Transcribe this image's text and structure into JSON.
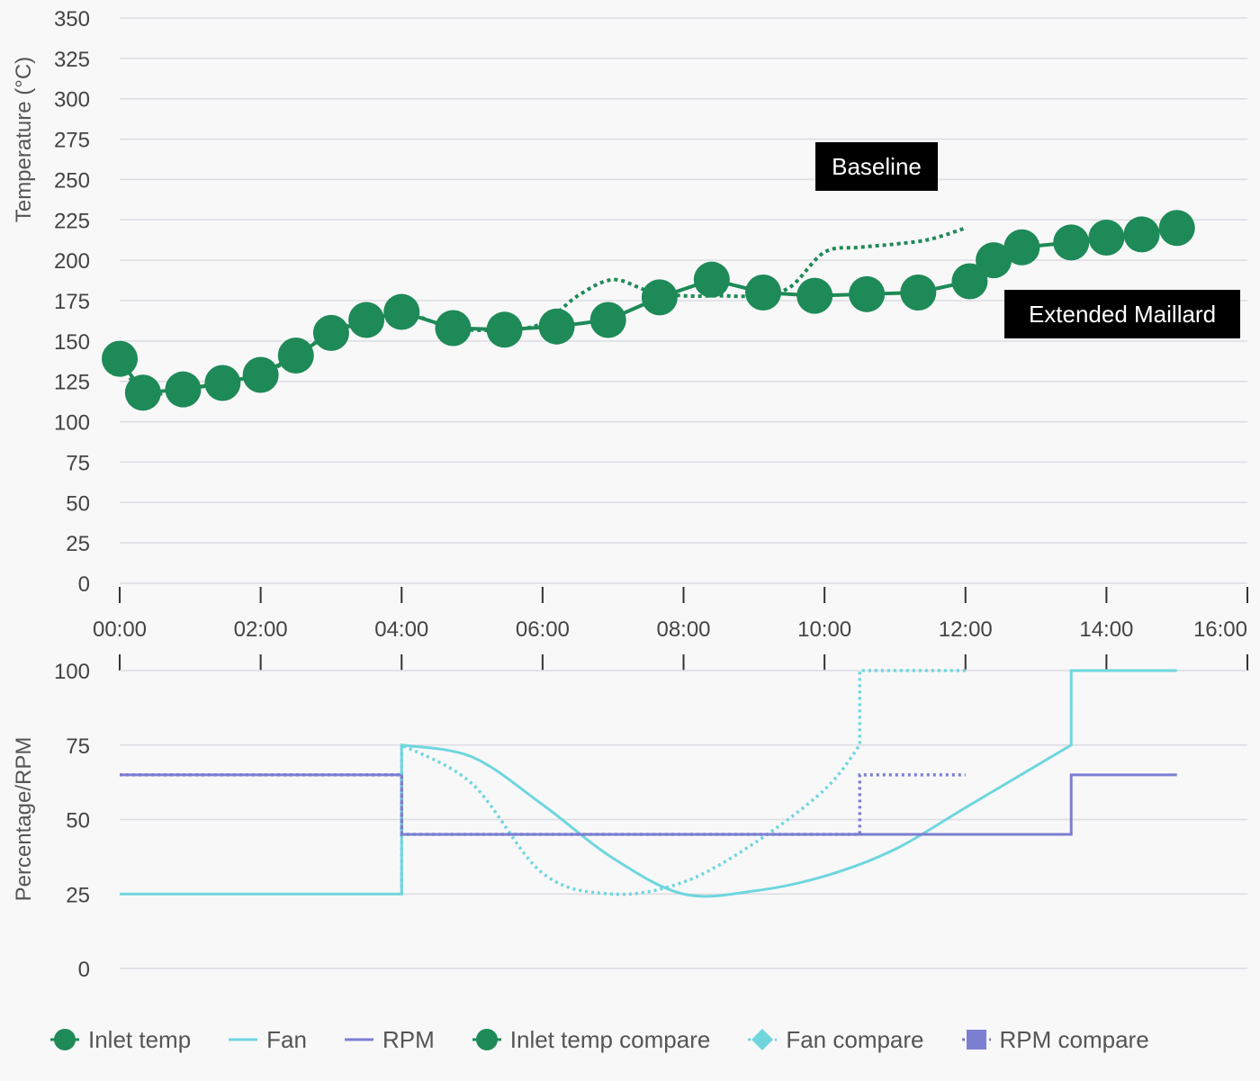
{
  "chart_data": [
    {
      "type": "line",
      "ylabel": "Temperature (°C)",
      "xlabel": "",
      "ylim": [
        0,
        350
      ],
      "yticks": [
        "0",
        "25",
        "50",
        "75",
        "100",
        "125",
        "150",
        "175",
        "200",
        "225",
        "250",
        "275",
        "300",
        "325",
        "350"
      ],
      "xticks": [
        "00:00",
        "02:00",
        "04:00",
        "06:00",
        "08:00",
        "10:00",
        "12:00",
        "14:00",
        "16:00"
      ],
      "xlim_minutes": [
        0,
        16
      ],
      "grid": true,
      "series": [
        {
          "name": "Inlet temp",
          "x": [
            0,
            0.33,
            0.9,
            1.46,
            2.0,
            2.5,
            3.0,
            3.5,
            4.0,
            4.73,
            5.46,
            6.2,
            6.93,
            7.66,
            8.4,
            9.13,
            9.86,
            10.6,
            11.33,
            12.06,
            12.4,
            12.8,
            13.5,
            14.0,
            14.5,
            15.0
          ],
          "values": [
            139,
            118,
            120,
            124,
            129,
            141,
            155,
            163,
            168,
            158,
            157,
            159,
            163,
            177,
            188,
            180,
            178,
            179,
            180,
            187,
            200,
            208,
            211,
            214,
            216,
            220
          ]
        },
        {
          "name": "Inlet temp compare",
          "x": [
            0,
            0.33,
            0.9,
            1.46,
            2.0,
            2.5,
            3.0,
            3.5,
            4.0,
            4.73,
            5.46,
            6.0,
            6.5,
            7.0,
            7.5,
            8.0,
            8.5,
            9.0,
            9.5,
            10.0,
            10.5,
            11.0,
            11.5,
            12.0
          ],
          "values": [
            139,
            118,
            120,
            124,
            129,
            141,
            155,
            163,
            168,
            158,
            157,
            161,
            178,
            188,
            181,
            178,
            178,
            178,
            183,
            205,
            208,
            210,
            213,
            220
          ]
        }
      ],
      "annotations": [
        "Baseline",
        "Extended Maillard"
      ]
    },
    {
      "type": "line",
      "ylabel": "Percentage/RPM",
      "ylim": [
        0,
        100
      ],
      "yticks": [
        "0",
        "25",
        "50",
        "75",
        "100"
      ],
      "grid": true,
      "series": [
        {
          "name": "Fan",
          "x": [
            0,
            4,
            4,
            5,
            6,
            7,
            8,
            9,
            10,
            11,
            12,
            13,
            13.5,
            13.5,
            15
          ],
          "values": [
            25,
            25,
            75,
            71,
            55,
            37,
            25,
            26,
            31,
            40,
            54,
            68,
            75,
            100,
            100
          ]
        },
        {
          "name": "RPM",
          "x": [
            0,
            4,
            4,
            13.5,
            13.5,
            15
          ],
          "values": [
            65,
            65,
            45,
            45,
            65,
            65
          ]
        },
        {
          "name": "Fan compare",
          "x": [
            4,
            4,
            5,
            6,
            7,
            8,
            9,
            10,
            10.5,
            10.5,
            12
          ],
          "values": [
            25,
            75,
            62,
            32,
            25,
            29,
            42,
            60,
            75,
            100,
            100
          ]
        },
        {
          "name": "RPM compare",
          "x": [
            0,
            4,
            4,
            10.5,
            10.5,
            12
          ],
          "values": [
            65,
            65,
            45,
            45,
            65,
            65
          ]
        }
      ]
    }
  ],
  "legend": [
    {
      "name": "Inlet temp",
      "icon": "circle-line-icon",
      "color": "#1e8a57"
    },
    {
      "name": "Fan",
      "icon": "line-icon",
      "color": "#6fd6de"
    },
    {
      "name": "RPM",
      "icon": "line-icon",
      "color": "#7b7fd1"
    },
    {
      "name": "Inlet temp compare",
      "icon": "circle-line-icon",
      "color": "#1e8a57"
    },
    {
      "name": "Fan compare",
      "icon": "diamond-icon",
      "color": "#6fd6de"
    },
    {
      "name": "RPM compare",
      "icon": "square-icon",
      "color": "#7b7fd1"
    }
  ],
  "colors": {
    "inlet": "#1e8a57",
    "fan": "#6fd6de",
    "rpm": "#7b7fd1",
    "grid": "#dcdce2",
    "text": "#444444"
  }
}
